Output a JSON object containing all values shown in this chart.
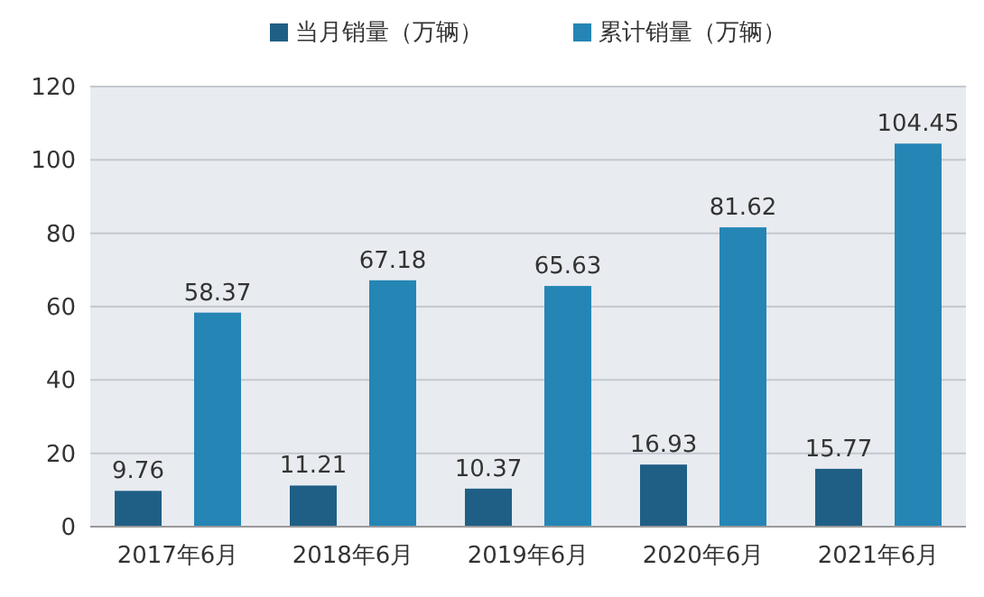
{
  "chart_data": {
    "type": "bar",
    "categories": [
      "2017年6月",
      "2018年6月",
      "2019年6月",
      "2020年6月",
      "2021年6月"
    ],
    "series": [
      {
        "name": "当月销量（万辆）",
        "color": "#1f5f86",
        "values": [
          9.76,
          11.21,
          10.37,
          16.93,
          15.77
        ]
      },
      {
        "name": "累计销量（万辆）",
        "color": "#2585b5",
        "values": [
          58.37,
          67.18,
          65.63,
          81.62,
          104.45
        ]
      }
    ],
    "ylim": [
      0,
      120
    ],
    "yticks": [
      0,
      20,
      40,
      60,
      80,
      100,
      120
    ],
    "grid": "y",
    "legend": "top",
    "data_labels": true
  }
}
